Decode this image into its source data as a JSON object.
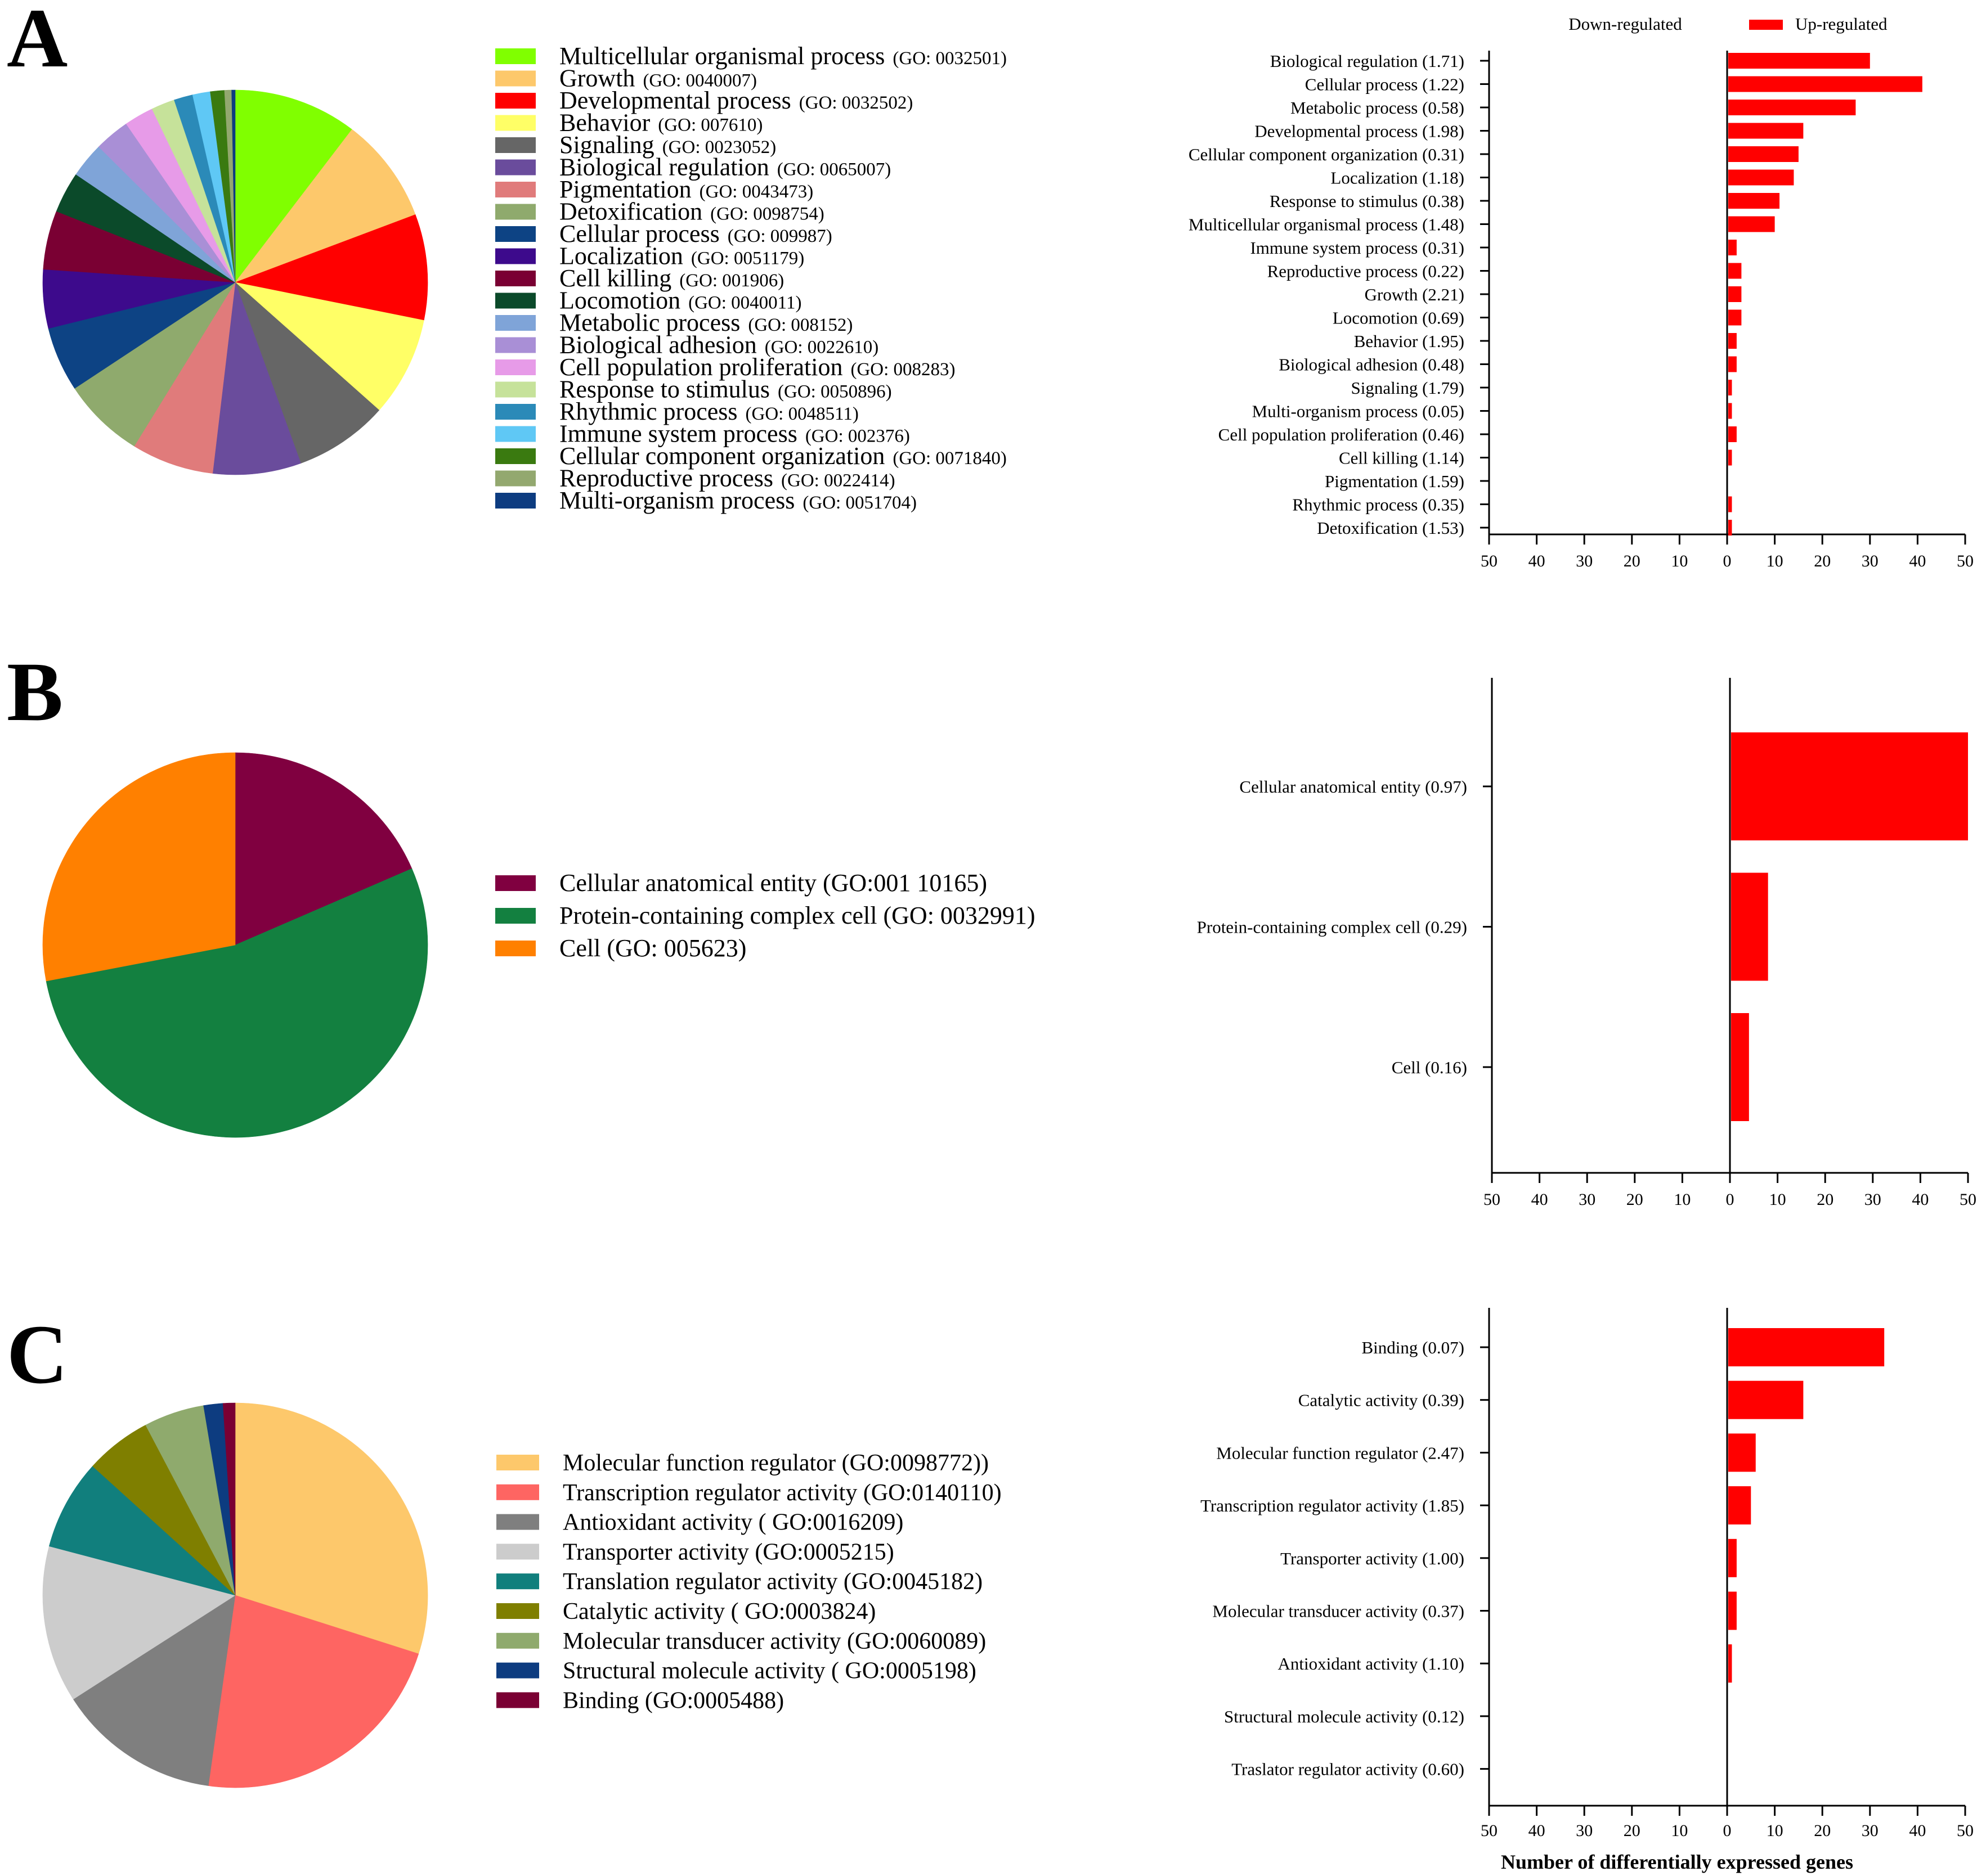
{
  "panels": [
    {
      "letter": "A",
      "pie": {
        "slices": [
          {
            "label": "Multicellular organismal process",
            "go": "(GO: 0032501)",
            "color": "#80ff00",
            "value": 10.5
          },
          {
            "label": "Growth",
            "go": "(GO: 0040007)",
            "color": "#fdc86b",
            "value": 9.0
          },
          {
            "label": "Developmental process",
            "go": "(GO: 0032502)",
            "color": "#ff0000",
            "value": 9.0
          },
          {
            "label": "Behavior",
            "go": "(GO: 007610)",
            "color": "#ffff66",
            "value": 8.5
          },
          {
            "label": "Signaling",
            "go": "(GO: 0023052)",
            "color": "#666666",
            "value": 8.0
          },
          {
            "label": "Biological regulation",
            "go": "(GO: 0065007)",
            "color": "#6a4c9c",
            "value": 7.5
          },
          {
            "label": "Pigmentation",
            "go": "(GO: 0043473)",
            "color": "#e07b7b",
            "value": 7.0
          },
          {
            "label": "Detoxification",
            "go": "(GO: 0098754)",
            "color": "#8faa6d",
            "value": 7.0
          },
          {
            "label": "Cellular process",
            "go": "(GO: 009987)",
            "color": "#0d4384",
            "value": 5.5
          },
          {
            "label": "Localization",
            "go": "(GO: 0051179)",
            "color": "#3d0a8c",
            "value": 5.0
          },
          {
            "label": "Cell killing",
            "go": "(GO: 001906)",
            "color": "#7a0033",
            "value": 5.0
          },
          {
            "label": "Locomotion",
            "go": "(GO: 0040011)",
            "color": "#0b4a2a",
            "value": 3.5
          },
          {
            "label": "Metabolic process",
            "go": "(GO: 008152)",
            "color": "#7fa4d8",
            "value": 3.0
          },
          {
            "label": "Biological adhesion",
            "go": "(GO: 0022610)",
            "color": "#a98fd6",
            "value": 3.0
          },
          {
            "label": "Cell population proliferation",
            "go": "(GO: 008283)",
            "color": "#e79be8",
            "value": 2.5
          },
          {
            "label": "Response to stimulus",
            "go": "(GO: 0050896)",
            "color": "#c6e29a",
            "value": 2.0
          },
          {
            "label": "Rhythmic process",
            "go": "(GO: 0048511)",
            "color": "#2b8ab8",
            "value": 1.6
          },
          {
            "label": "Immune system process",
            "go": "(GO: 002376)",
            "color": "#5fc8f5",
            "value": 1.5
          },
          {
            "label": "Cellular component organization",
            "go": "(GO: 0071840)",
            "color": "#3a7a10",
            "value": 1.2
          },
          {
            "label": "Reproductive process",
            "go": "(GO: 0022414)",
            "color": "#93a86f",
            "value": 0.6
          },
          {
            "label": "Multi-organism process",
            "go": "(GO: 0051704)",
            "color": "#0d3c80",
            "value": 0.3
          }
        ]
      },
      "bars": {
        "legend": {
          "down": "Down-regulated",
          "up": "Up-regulated"
        },
        "categories": [
          "Biological regulation  (1.71)",
          "Cellular process (1.22)",
          "Metabolic process (0.58)",
          "Developmental process (1.98)",
          "Cellular component organization (0.31)",
          "Localization (1.18)",
          "Response to stimulus (0.38)",
          "Multicellular organismal process (1.48)",
          "Immune system process (0.31)",
          "Reproductive process (0.22)",
          "Growth (2.21)",
          "Locomotion (0.69)",
          "Behavior (1.95)",
          "Biological adhesion (0.48)",
          "Signaling (1.79)",
          "Multi-organism process (0.05)",
          "Cell population proliferation (0.46)",
          "Cell killing (1.14)",
          "Pigmentation (1.59)",
          "Rhythmic process (0.35)",
          "Detoxification (1.53)"
        ],
        "values": [
          30,
          41,
          27,
          16,
          15,
          14,
          11,
          10,
          2,
          3,
          3,
          3,
          2,
          2,
          1,
          1,
          2,
          1,
          0,
          1,
          1
        ],
        "ticks": [
          "50",
          "40",
          "30",
          "20",
          "10",
          "0",
          "10",
          "20",
          "30",
          "40",
          "50"
        ]
      }
    },
    {
      "letter": "B",
      "pie": {
        "slices": [
          {
            "label": "Cellular anatomical entity (GO:001 10165)",
            "go": "",
            "color": "#800040",
            "value": 18.5
          },
          {
            "label": "Protein-containing complex cell (GO: 0032991)",
            "go": "",
            "color": "#138040",
            "value": 53.5
          },
          {
            "label": "Cell (GO: 005623)",
            "go": "",
            "color": "#ff8000",
            "value": 28.0
          }
        ]
      },
      "bars": {
        "legend": {
          "down": "",
          "up": ""
        },
        "categories": [
          "Cellular anatomical entity (0.97)",
          "Protein-containing complex cell (0.29)",
          "Cell (0.16)"
        ],
        "values": [
          50,
          8,
          4
        ],
        "ticks": [
          "50",
          "40",
          "30",
          "20",
          "10",
          "0",
          "10",
          "20",
          "30",
          "40",
          "50"
        ]
      }
    },
    {
      "letter": "C",
      "pie": {
        "slices": [
          {
            "label": "Molecular function regulator (GO:0098772))",
            "go": "",
            "color": "#fdc86b",
            "value": 29.5
          },
          {
            "label": "Transcription regulator activity (GO:0140110)",
            "go": "",
            "color": "#fe6562",
            "value": 22.0
          },
          {
            "label": "Antioxidant activity ( GO:0016209)",
            "go": "",
            "color": "#7f7f7f",
            "value": 13.5
          },
          {
            "label": "Transporter activity (GO:0005215)",
            "go": "",
            "color": "#cccccc",
            "value": 13.0
          },
          {
            "label": "Translation regulator activity (GO:0045182)",
            "go": "",
            "color": "#117f7d",
            "value": 7.5
          },
          {
            "label": "Catalytic activity ( GO:0003824)",
            "go": "",
            "color": "#7f7f00",
            "value": 5.5
          },
          {
            "label": "Molecular transducer activity (GO:0060089)",
            "go": "",
            "color": "#8faa6d",
            "value": 5.0
          },
          {
            "label": "Structural molecule activity ( GO:0005198)",
            "go": "",
            "color": "#0d3c80",
            "value": 1.6
          },
          {
            "label": "Binding (GO:0005488)",
            "go": "",
            "color": "#7a0033",
            "value": 1.0
          }
        ]
      },
      "bars": {
        "legend": {
          "down": "",
          "up": ""
        },
        "categories": [
          "Binding (0.07)",
          "Catalytic activity (0.39)",
          "Molecular function regulator (2.47)",
          "Transcription regulator activity (1.85)",
          "Transporter activity (1.00)",
          "Molecular transducer activity (0.37)",
          "Antioxidant activity (1.10)",
          "Structural molecule activity (0.12)",
          "Traslator regulator activity (0.60)"
        ],
        "values": [
          33,
          16,
          6,
          5,
          2,
          2,
          1,
          0,
          0
        ],
        "ticks": [
          "50",
          "40",
          "30",
          "20",
          "10",
          "0",
          "10",
          "20",
          "30",
          "40",
          "50"
        ],
        "xlabel": "Number of differentially expressed genes"
      }
    }
  ],
  "chart_data": [
    {
      "type": "pie",
      "title": "A",
      "categories": [
        "Multicellular organismal process",
        "Growth",
        "Developmental process",
        "Behavior",
        "Signaling",
        "Biological regulation",
        "Pigmentation",
        "Detoxification",
        "Cellular process",
        "Localization",
        "Cell killing",
        "Locomotion",
        "Metabolic process",
        "Biological adhesion",
        "Cell population proliferation",
        "Response to stimulus",
        "Rhythmic process",
        "Immune system process",
        "Cellular component organization",
        "Reproductive process",
        "Multi-organism process"
      ],
      "values": [
        10.5,
        9.0,
        9.0,
        8.5,
        8.0,
        7.5,
        7.0,
        7.0,
        5.5,
        5.0,
        5.0,
        3.5,
        3.0,
        3.0,
        2.5,
        2.0,
        1.6,
        1.5,
        1.2,
        0.6,
        0.3
      ]
    },
    {
      "type": "bar",
      "title": "A",
      "categories": [
        "Biological regulation",
        "Cellular process",
        "Metabolic process",
        "Developmental process",
        "Cellular component organization",
        "Localization",
        "Response to stimulus",
        "Multicellular organismal process",
        "Immune system process",
        "Reproductive process",
        "Growth",
        "Locomotion",
        "Behavior",
        "Biological adhesion",
        "Signaling",
        "Multi-organism process",
        "Cell population proliferation",
        "Cell killing",
        "Pigmentation",
        "Rhythmic process",
        "Detoxification"
      ],
      "series": [
        {
          "name": "Up-regulated",
          "values": [
            30,
            41,
            27,
            16,
            15,
            14,
            11,
            10,
            2,
            3,
            3,
            3,
            2,
            2,
            1,
            1,
            2,
            1,
            0,
            1,
            1
          ]
        }
      ],
      "xlim": [
        -50,
        50
      ]
    },
    {
      "type": "pie",
      "title": "B",
      "categories": [
        "Cellular anatomical entity",
        "Protein-containing complex cell",
        "Cell"
      ],
      "values": [
        18.5,
        53.5,
        28.0
      ]
    },
    {
      "type": "bar",
      "title": "B",
      "categories": [
        "Cellular anatomical entity",
        "Protein-containing complex cell",
        "Cell"
      ],
      "series": [
        {
          "name": "Up-regulated",
          "values": [
            50,
            8,
            4
          ]
        }
      ],
      "xlim": [
        -50,
        50
      ]
    },
    {
      "type": "pie",
      "title": "C",
      "categories": [
        "Molecular function regulator",
        "Transcription regulator activity",
        "Antioxidant activity",
        "Transporter activity",
        "Translation regulator activity",
        "Catalytic activity",
        "Molecular transducer activity",
        "Structural molecule activity",
        "Binding"
      ],
      "values": [
        29.5,
        22.0,
        13.5,
        13.0,
        7.5,
        5.5,
        5.0,
        1.6,
        1.0
      ]
    },
    {
      "type": "bar",
      "title": "C",
      "categories": [
        "Binding",
        "Catalytic activity",
        "Molecular function regulator",
        "Transcription regulator activity",
        "Transporter activity",
        "Molecular transducer activity",
        "Antioxidant activity",
        "Structural molecule activity",
        "Traslator regulator activity"
      ],
      "series": [
        {
          "name": "Up-regulated",
          "values": [
            33,
            16,
            6,
            5,
            2,
            2,
            1,
            0,
            0
          ]
        }
      ],
      "xlabel": "Number of differentially expressed genes",
      "xlim": [
        -50,
        50
      ]
    }
  ]
}
